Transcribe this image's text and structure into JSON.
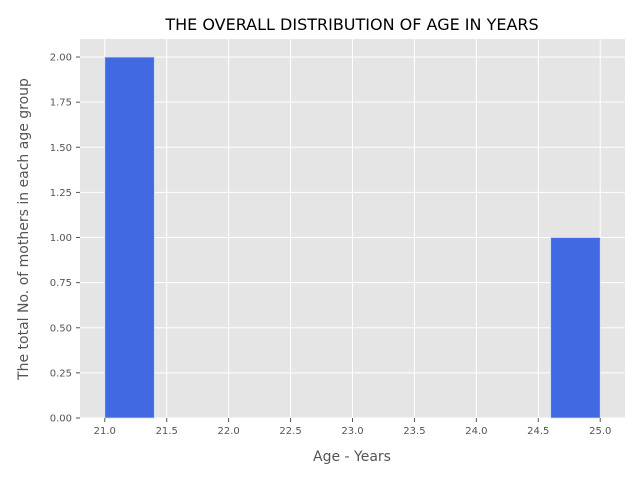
{
  "chart_data": {
    "type": "bar",
    "title": "THE OVERALL DISTRIBUTION OF AGE IN YEARS",
    "xlabel": "Age - Years",
    "ylabel": "The total No. of mothers in each age group",
    "bins": [
      {
        "x0": 21.0,
        "x1": 21.4,
        "count": 2
      },
      {
        "x0": 21.4,
        "x1": 21.8,
        "count": 0
      },
      {
        "x0": 21.8,
        "x1": 22.2,
        "count": 0
      },
      {
        "x0": 22.2,
        "x1": 22.6,
        "count": 0
      },
      {
        "x0": 22.6,
        "x1": 23.0,
        "count": 0
      },
      {
        "x0": 23.0,
        "x1": 23.4,
        "count": 0
      },
      {
        "x0": 23.4,
        "x1": 23.8,
        "count": 0
      },
      {
        "x0": 23.8,
        "x1": 24.2,
        "count": 0
      },
      {
        "x0": 24.2,
        "x1": 24.6,
        "count": 0
      },
      {
        "x0": 24.6,
        "x1": 25.0,
        "count": 1
      }
    ],
    "xlim": [
      20.8,
      25.2
    ],
    "ylim": [
      0,
      2.1
    ],
    "xticks": [
      "21.0",
      "21.5",
      "22.0",
      "22.5",
      "23.0",
      "23.5",
      "24.0",
      "24.5",
      "25.0"
    ],
    "yticks": [
      "0.00",
      "0.25",
      "0.50",
      "0.75",
      "1.00",
      "1.25",
      "1.50",
      "1.75",
      "2.00"
    ],
    "grid": true,
    "style": "ggplot",
    "colors": {
      "bar": "#4169e1",
      "bar_edge": "#d0d8f5",
      "plot_bg": "#e5e5e5",
      "grid": "#ffffff",
      "tick_text": "#555555",
      "title_text": "#000000"
    }
  }
}
